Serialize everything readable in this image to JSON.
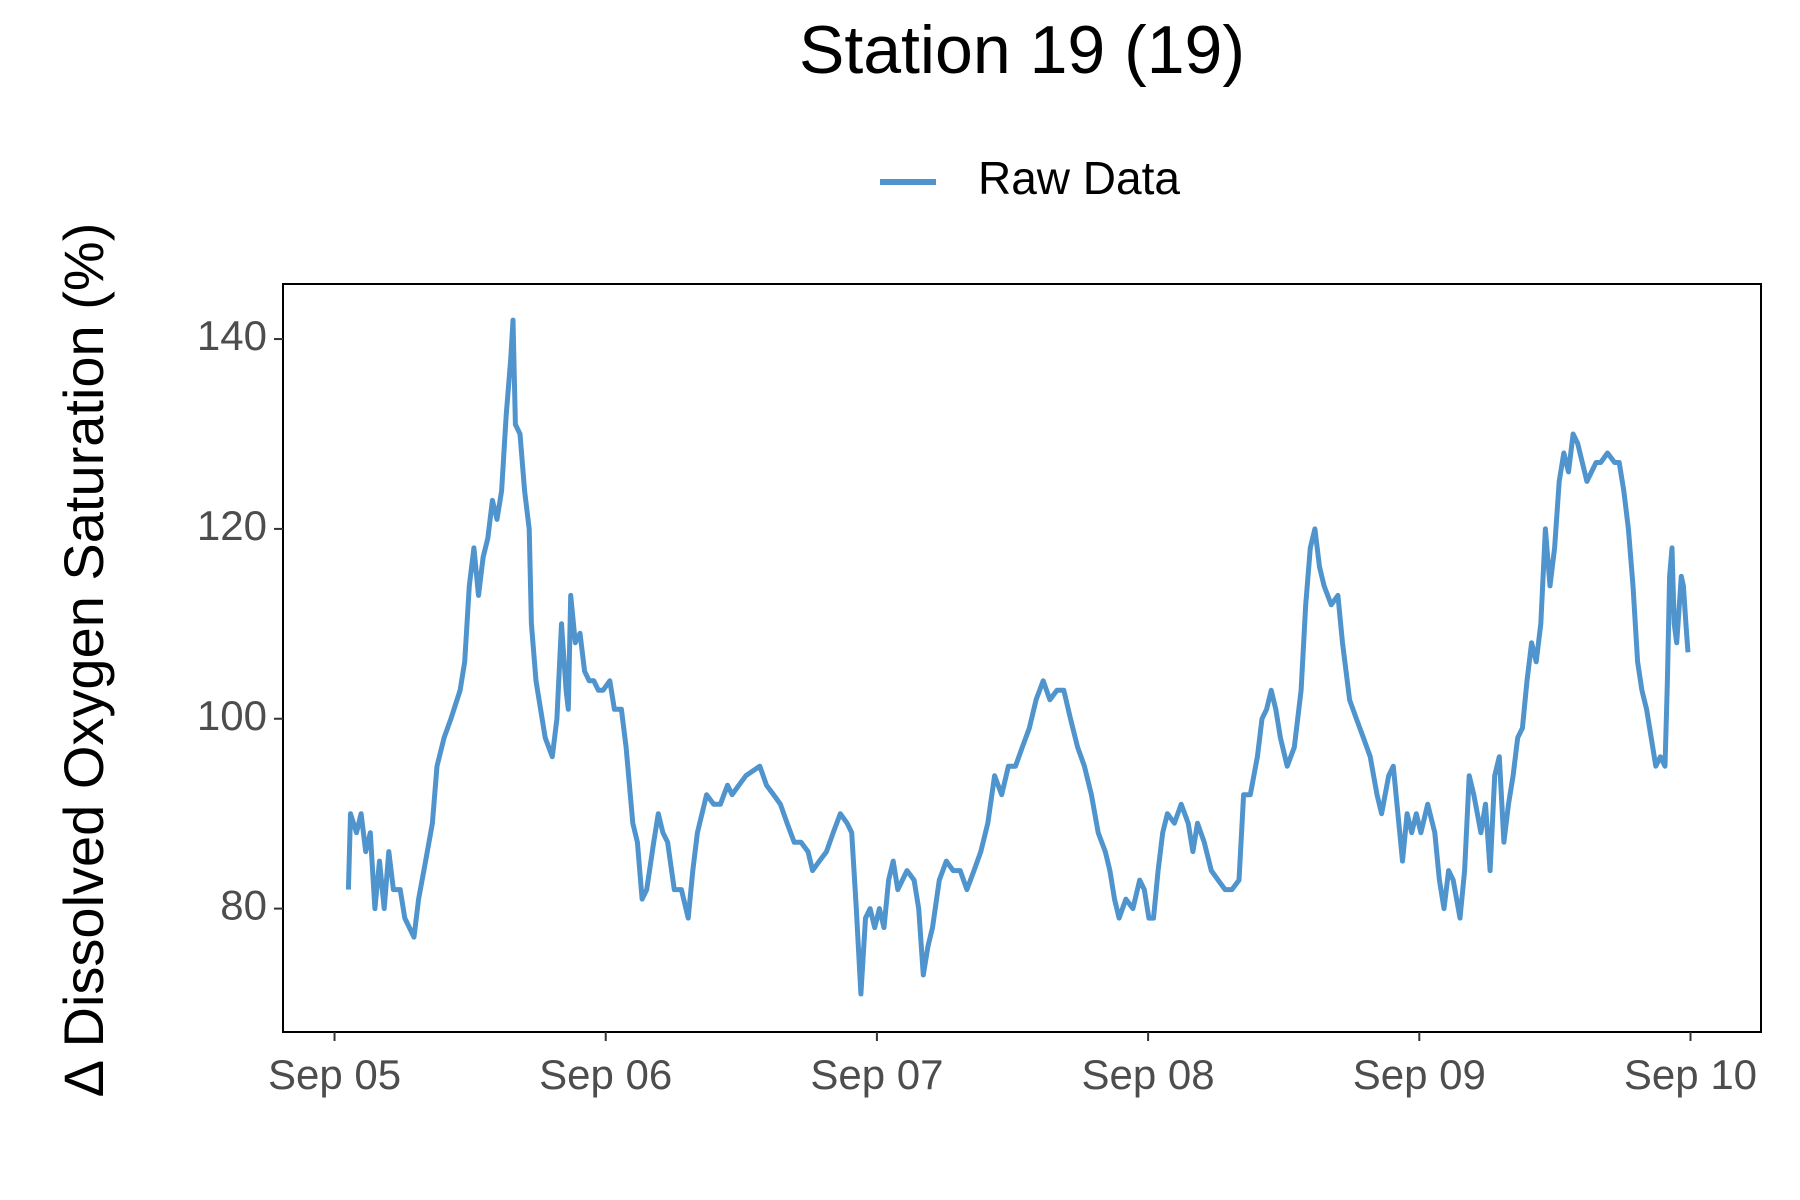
{
  "chart_data": {
    "type": "line",
    "title": "Station 19 (19)",
    "y_label": "Δ Dissolved Oxygen Saturation (%)",
    "legend_position": "top",
    "x": [
      5.051,
      5.059,
      5.081,
      5.098,
      5.115,
      5.132,
      5.149,
      5.166,
      5.183,
      5.2,
      5.217,
      5.242,
      5.259,
      5.293,
      5.31,
      5.336,
      5.361,
      5.378,
      5.404,
      5.429,
      5.463,
      5.48,
      5.497,
      5.514,
      5.531,
      5.548,
      5.565,
      5.582,
      5.599,
      5.616,
      5.633,
      5.65,
      5.658,
      5.667,
      5.684,
      5.701,
      5.718,
      5.726,
      5.743,
      5.76,
      5.777,
      5.803,
      5.82,
      5.837,
      5.854,
      5.862,
      5.871,
      5.888,
      5.905,
      5.922,
      5.939,
      5.956,
      5.973,
      5.99,
      6.015,
      6.032,
      6.058,
      6.075,
      6.1,
      6.117,
      6.134,
      6.151,
      6.177,
      6.194,
      6.211,
      6.228,
      6.253,
      6.279,
      6.304,
      6.321,
      6.338,
      6.355,
      6.372,
      6.398,
      6.423,
      6.449,
      6.466,
      6.491,
      6.517,
      6.568,
      6.593,
      6.619,
      6.644,
      6.669,
      6.695,
      6.72,
      6.746,
      6.763,
      6.788,
      6.814,
      6.839,
      6.865,
      6.89,
      6.907,
      6.924,
      6.941,
      6.958,
      6.975,
      6.992,
      7.009,
      7.026,
      7.043,
      7.06,
      7.077,
      7.094,
      7.111,
      7.137,
      7.154,
      7.171,
      7.188,
      7.205,
      7.23,
      7.256,
      7.281,
      7.307,
      7.332,
      7.358,
      7.383,
      7.409,
      7.434,
      7.46,
      7.485,
      7.511,
      7.536,
      7.562,
      7.587,
      7.613,
      7.638,
      7.664,
      7.689,
      7.714,
      7.74,
      7.765,
      7.791,
      7.816,
      7.842,
      7.859,
      7.876,
      7.893,
      7.918,
      7.944,
      7.969,
      7.986,
      8.003,
      8.02,
      8.037,
      8.054,
      8.071,
      8.097,
      8.122,
      8.148,
      8.165,
      8.182,
      8.207,
      8.233,
      8.258,
      8.284,
      8.309,
      8.335,
      8.352,
      8.377,
      8.403,
      8.42,
      8.437,
      8.454,
      8.471,
      8.488,
      8.513,
      8.539,
      8.564,
      8.581,
      8.598,
      8.615,
      8.632,
      8.649,
      8.675,
      8.7,
      8.717,
      8.743,
      8.768,
      8.794,
      8.819,
      8.844,
      8.861,
      8.887,
      8.904,
      8.921,
      8.938,
      8.955,
      8.972,
      8.989,
      9.006,
      9.031,
      9.057,
      9.074,
      9.091,
      9.108,
      9.125,
      9.15,
      9.167,
      9.184,
      9.201,
      9.227,
      9.244,
      9.261,
      9.278,
      9.295,
      9.312,
      9.329,
      9.346,
      9.363,
      9.38,
      9.397,
      9.414,
      9.431,
      9.448,
      9.465,
      9.482,
      9.499,
      9.516,
      9.533,
      9.55,
      9.567,
      9.584,
      9.601,
      9.618,
      9.635,
      9.652,
      9.669,
      9.694,
      9.72,
      9.737,
      9.754,
      9.771,
      9.788,
      9.805,
      9.821,
      9.838,
      9.855,
      9.872,
      9.889,
      9.906,
      9.915,
      9.923,
      9.932,
      9.94,
      9.949,
      9.966,
      9.974,
      9.983,
      9.991
    ],
    "series": [
      {
        "name": "Raw Data",
        "color": "#4f94cd",
        "values": [
          82,
          90,
          88,
          90,
          86,
          88,
          80,
          85,
          80,
          86,
          82,
          82,
          79,
          77,
          81,
          85,
          89,
          95,
          98,
          100,
          103,
          106,
          114,
          118,
          113,
          117,
          119,
          123,
          121,
          124,
          132,
          138,
          142,
          131,
          130,
          124,
          120,
          110,
          104,
          101,
          98,
          96,
          100,
          110,
          103,
          101,
          113,
          108,
          109,
          105,
          104,
          104,
          103,
          103,
          104,
          101,
          101,
          97,
          89,
          87,
          81,
          82,
          87,
          90,
          88,
          87,
          82,
          82,
          79,
          84,
          88,
          90,
          92,
          91,
          91,
          93,
          92,
          93,
          94,
          95,
          93,
          92,
          91,
          89,
          87,
          87,
          86,
          84,
          85,
          86,
          88,
          90,
          89,
          88,
          80,
          71,
          79,
          80,
          78,
          80,
          78,
          83,
          85,
          82,
          83,
          84,
          83,
          80,
          73,
          76,
          78,
          83,
          85,
          84,
          84,
          82,
          84,
          86,
          89,
          94,
          92,
          95,
          95,
          97,
          99,
          102,
          104,
          102,
          103,
          103,
          100,
          97,
          95,
          92,
          88,
          86,
          84,
          81,
          79,
          81,
          80,
          83,
          82,
          79,
          79,
          84,
          88,
          90,
          89,
          91,
          89,
          86,
          89,
          87,
          84,
          83,
          82,
          82,
          83,
          92,
          92,
          96,
          100,
          101,
          103,
          101,
          98,
          95,
          97,
          103,
          112,
          118,
          120,
          116,
          114,
          112,
          113,
          108,
          102,
          100,
          98,
          96,
          92,
          90,
          94,
          95,
          90,
          85,
          90,
          88,
          90,
          88,
          91,
          88,
          83,
          80,
          84,
          83,
          79,
          84,
          94,
          92,
          88,
          91,
          84,
          94,
          96,
          87,
          91,
          94,
          98,
          99,
          104,
          108,
          106,
          110,
          120,
          114,
          118,
          125,
          128,
          126,
          130,
          129,
          127,
          125,
          126,
          127,
          127,
          128,
          127,
          127,
          124,
          120,
          114,
          106,
          103,
          101,
          98,
          95,
          96,
          95,
          104,
          115,
          118,
          110,
          108,
          115,
          114,
          110,
          107
        ]
      }
    ],
    "xlim": [
      4.81,
      10.26
    ],
    "xticks": [
      {
        "value": 5,
        "label": "Sep 05"
      },
      {
        "value": 6,
        "label": "Sep 06"
      },
      {
        "value": 7,
        "label": "Sep 07"
      },
      {
        "value": 8,
        "label": "Sep 08"
      },
      {
        "value": 9,
        "label": "Sep 09"
      },
      {
        "value": 10,
        "label": "Sep 10"
      }
    ],
    "ylim": [
      67,
      145.8
    ],
    "yticks": [
      80,
      100,
      120,
      140
    ]
  }
}
